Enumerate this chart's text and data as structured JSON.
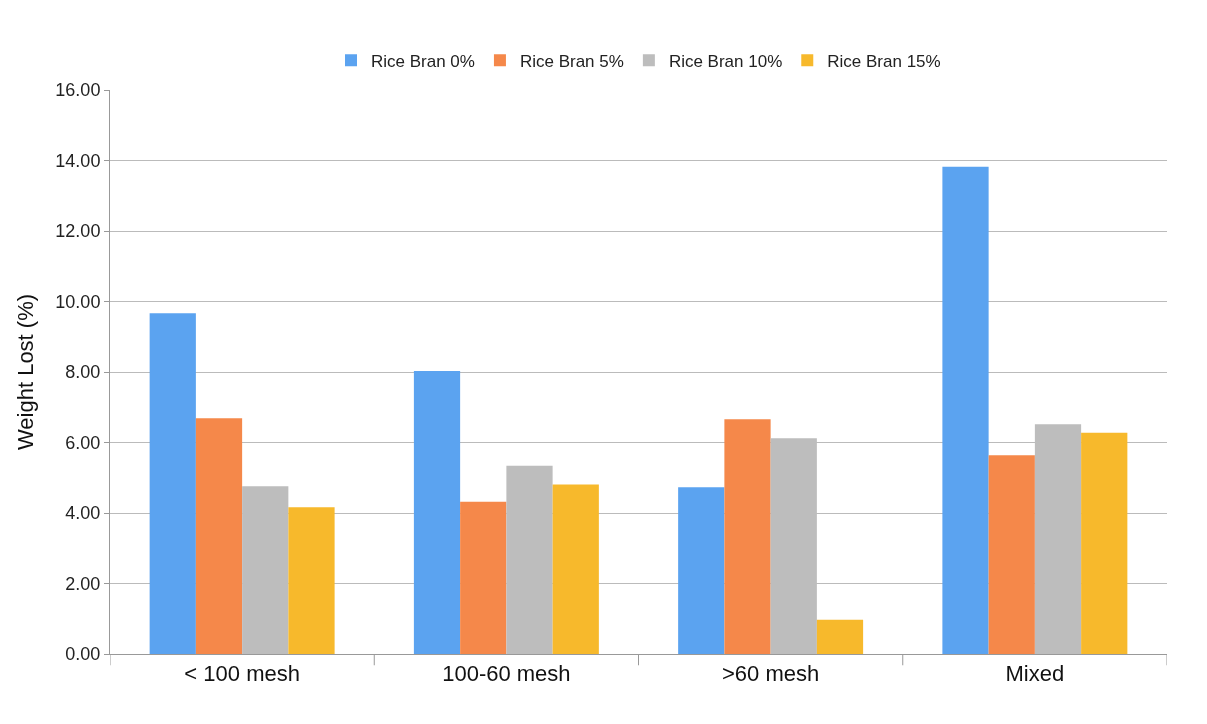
{
  "chart_data": {
    "type": "bar",
    "ylabel": "Weight Lost (%)",
    "categories": [
      "< 100 mesh",
      "100-60 mesh",
      ">60 mesh",
      "Mixed"
    ],
    "series": [
      {
        "name": "Rice Bran 0%",
        "color": "#5ba3f0",
        "values": [
          9.67,
          8.03,
          4.73,
          13.82
        ]
      },
      {
        "name": "Rice Bran 5%",
        "color": "#f5884a",
        "values": [
          6.69,
          4.32,
          6.66,
          5.64
        ]
      },
      {
        "name": "Rice Bran 10%",
        "color": "#bdbdbd",
        "values": [
          4.76,
          5.34,
          6.12,
          6.52
        ]
      },
      {
        "name": "Rice Bran 15%",
        "color": "#f7b92c",
        "values": [
          4.16,
          4.81,
          0.97,
          6.28
        ]
      }
    ],
    "ylim": [
      0,
      16
    ],
    "yticks": [
      {
        "value": 0,
        "label": "0.00"
      },
      {
        "value": 2,
        "label": "2.00"
      },
      {
        "value": 4,
        "label": "4.00"
      },
      {
        "value": 6,
        "label": "6.00"
      },
      {
        "value": 8,
        "label": "8.00"
      },
      {
        "value": 10,
        "label": "10.00"
      },
      {
        "value": 12,
        "label": "12.00"
      },
      {
        "value": 14,
        "label": "14.00"
      },
      {
        "value": 16,
        "label": "16.00"
      }
    ],
    "grid": "y",
    "legend": "top"
  }
}
